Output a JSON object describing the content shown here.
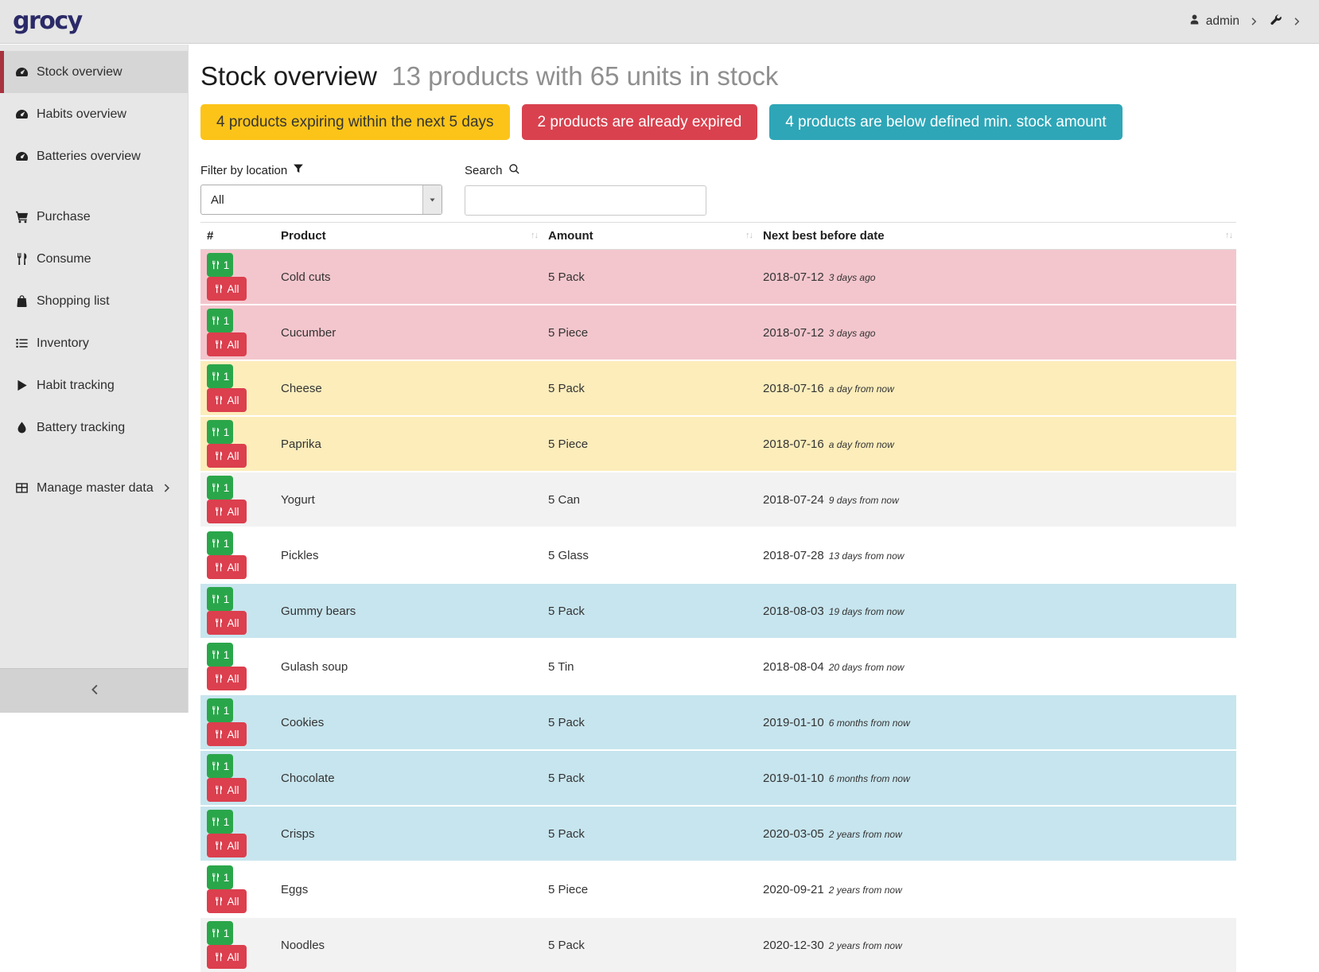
{
  "navbar": {
    "logo": "grocy",
    "user_label": "admin"
  },
  "sidebar": {
    "groups": [
      {
        "items": [
          {
            "label": "Stock overview",
            "icon": "tachometer",
            "active": true
          },
          {
            "label": "Habits overview",
            "icon": "tachometer"
          },
          {
            "label": "Batteries overview",
            "icon": "tachometer"
          }
        ]
      },
      {
        "items": [
          {
            "label": "Purchase",
            "icon": "cart"
          },
          {
            "label": "Consume",
            "icon": "utensils"
          },
          {
            "label": "Shopping list",
            "icon": "bag"
          },
          {
            "label": "Inventory",
            "icon": "list"
          },
          {
            "label": "Habit tracking",
            "icon": "play"
          },
          {
            "label": "Battery tracking",
            "icon": "drop"
          }
        ]
      },
      {
        "items": [
          {
            "label": "Manage master data",
            "icon": "table",
            "chevron": true
          }
        ]
      }
    ]
  },
  "header": {
    "title": "Stock overview",
    "subtitle": "13 products with 65 units in stock"
  },
  "badges": [
    {
      "id": "expiring",
      "label": "4 products expiring within the next 5 days",
      "bg": "#fcc419",
      "fg": "#343434"
    },
    {
      "id": "expired",
      "label": "2 products are already expired",
      "bg": "#d9414e",
      "fg": "#ffffff"
    },
    {
      "id": "below-min-stock",
      "label": "4 products are below defined min. stock amount",
      "bg": "#2ea6b7",
      "fg": "#ffffff"
    }
  ],
  "filters": {
    "location_label": "Filter by location",
    "location_value": "All",
    "search_label": "Search",
    "search_value": ""
  },
  "table": {
    "sort_glyph": "↑↓",
    "columns": [
      {
        "label": "#",
        "sortable": false
      },
      {
        "label": "Product",
        "sortable": true
      },
      {
        "label": "Amount",
        "sortable": true
      },
      {
        "label": "Next best before date",
        "sortable": true
      }
    ],
    "consume_buttons": {
      "one": "1",
      "all": "All"
    },
    "rows": [
      {
        "product": "Cold cuts",
        "amount": "5 Pack",
        "date": "2018-07-12",
        "relative": "3 days ago",
        "status": "expired"
      },
      {
        "product": "Cucumber",
        "amount": "5 Piece",
        "date": "2018-07-12",
        "relative": "3 days ago",
        "status": "expired"
      },
      {
        "product": "Cheese",
        "amount": "5 Pack",
        "date": "2018-07-16",
        "relative": "a day from now",
        "status": "expiring"
      },
      {
        "product": "Paprika",
        "amount": "5 Piece",
        "date": "2018-07-16",
        "relative": "a day from now",
        "status": "expiring"
      },
      {
        "product": "Yogurt",
        "amount": "5 Can",
        "date": "2018-07-24",
        "relative": "9 days from now",
        "status": "none"
      },
      {
        "product": "Pickles",
        "amount": "5 Glass",
        "date": "2018-07-28",
        "relative": "13 days from now",
        "status": "none"
      },
      {
        "product": "Gummy bears",
        "amount": "5 Pack",
        "date": "2018-08-03",
        "relative": "19 days from now",
        "status": "belowmin"
      },
      {
        "product": "Gulash soup",
        "amount": "5 Tin",
        "date": "2018-08-04",
        "relative": "20 days from now",
        "status": "none"
      },
      {
        "product": "Cookies",
        "amount": "5 Pack",
        "date": "2019-01-10",
        "relative": "6 months from now",
        "status": "belowmin"
      },
      {
        "product": "Chocolate",
        "amount": "5 Pack",
        "date": "2019-01-10",
        "relative": "6 months from now",
        "status": "belowmin"
      },
      {
        "product": "Crisps",
        "amount": "5 Pack",
        "date": "2020-03-05",
        "relative": "2 years from now",
        "status": "belowmin"
      },
      {
        "product": "Eggs",
        "amount": "5 Piece",
        "date": "2020-09-21",
        "relative": "2 years from now",
        "status": "none"
      },
      {
        "product": "Noodles",
        "amount": "5 Pack",
        "date": "2020-12-30",
        "relative": "2 years from now",
        "status": "none"
      }
    ]
  },
  "colors": {
    "row_expired": "#f3c6cd",
    "row_expiring": "#fcedbb",
    "row_below_min": "#c7e5ee",
    "row_stripe": "#f2f2f2",
    "button_consume_one": "#2aa64a",
    "button_consume_all": "#dc3f4e",
    "sidebar_active_border": "#a8323e",
    "logo_color": "#2b2a68"
  }
}
